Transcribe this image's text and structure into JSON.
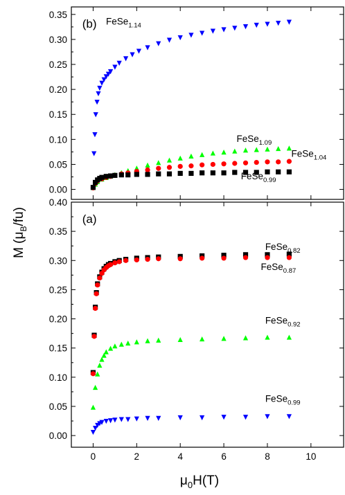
{
  "chart_data": [
    {
      "panel": "(b)",
      "type": "scatter",
      "xlim": [
        -1,
        11.5
      ],
      "ylim": [
        -0.02,
        0.365
      ],
      "yticks": [
        "0.00",
        "0.05",
        "0.10",
        "0.15",
        "0.20",
        "0.25",
        "0.30",
        "0.35"
      ],
      "grid": false,
      "series": [
        {
          "name": "FeSe",
          "sub": "1.14",
          "color": "#0000ff",
          "marker": "triangle-down",
          "x": [
            0.04,
            0.08,
            0.12,
            0.18,
            0.24,
            0.3,
            0.4,
            0.5,
            0.6,
            0.7,
            0.8,
            1.0,
            1.2,
            1.5,
            1.8,
            2.1,
            2.5,
            3.0,
            3.5,
            4.0,
            4.5,
            5.0,
            5.5,
            6.0,
            6.5,
            7.0,
            7.5,
            8.0,
            8.5,
            9.0
          ],
          "y": [
            0.072,
            0.11,
            0.15,
            0.175,
            0.192,
            0.203,
            0.213,
            0.22,
            0.226,
            0.231,
            0.236,
            0.245,
            0.253,
            0.262,
            0.27,
            0.277,
            0.284,
            0.292,
            0.299,
            0.304,
            0.309,
            0.313,
            0.317,
            0.32,
            0.323,
            0.326,
            0.329,
            0.331,
            0.333,
            0.335
          ]
        },
        {
          "name": "FeSe",
          "sub": "1.09",
          "color": "#00ff00",
          "marker": "triangle-up",
          "x": [
            0.0,
            0.1,
            0.2,
            0.4,
            0.6,
            0.8,
            1.0,
            1.3,
            1.6,
            2.0,
            2.5,
            3.0,
            3.5,
            4.0,
            4.5,
            5.0,
            5.5,
            6.0,
            6.5,
            7.0,
            7.5,
            8.0,
            8.5,
            9.0
          ],
          "y": [
            0.003,
            0.01,
            0.015,
            0.02,
            0.023,
            0.026,
            0.029,
            0.033,
            0.037,
            0.042,
            0.048,
            0.053,
            0.058,
            0.062,
            0.066,
            0.069,
            0.072,
            0.074,
            0.076,
            0.078,
            0.079,
            0.08,
            0.081,
            0.082
          ]
        },
        {
          "name": "FeSe",
          "sub": "1.04",
          "color": "#ff0000",
          "marker": "circle",
          "x": [
            0.0,
            0.1,
            0.2,
            0.4,
            0.6,
            0.8,
            1.0,
            1.3,
            1.6,
            2.0,
            2.5,
            3.0,
            3.5,
            4.0,
            4.5,
            5.0,
            5.5,
            6.0,
            6.5,
            7.0,
            7.5,
            8.0,
            8.5,
            9.0
          ],
          "y": [
            0.003,
            0.012,
            0.017,
            0.021,
            0.024,
            0.026,
            0.028,
            0.031,
            0.033,
            0.036,
            0.039,
            0.042,
            0.044,
            0.046,
            0.047,
            0.049,
            0.05,
            0.051,
            0.052,
            0.053,
            0.054,
            0.055,
            0.055,
            0.056
          ]
        },
        {
          "name": "FeSe",
          "sub": "0.99",
          "color": "#000000",
          "marker": "square",
          "x": [
            0.0,
            0.1,
            0.2,
            0.3,
            0.4,
            0.6,
            0.8,
            1.0,
            1.3,
            1.6,
            2.0,
            2.5,
            3.0,
            3.5,
            4.0,
            4.5,
            5.0,
            5.5,
            6.0,
            6.5,
            7.0,
            7.5,
            8.0,
            8.5,
            9.0
          ],
          "y": [
            0.004,
            0.014,
            0.019,
            0.022,
            0.024,
            0.026,
            0.027,
            0.028,
            0.029,
            0.029,
            0.03,
            0.03,
            0.031,
            0.031,
            0.032,
            0.032,
            0.033,
            0.033,
            0.033,
            0.034,
            0.034,
            0.034,
            0.035,
            0.035,
            0.035
          ]
        }
      ]
    },
    {
      "panel": "(a)",
      "type": "scatter",
      "xlim": [
        -1,
        11.5
      ],
      "ylim": [
        -0.02,
        0.4
      ],
      "yticks": [
        "0.00",
        "0.05",
        "0.10",
        "0.15",
        "0.20",
        "0.25",
        "0.30",
        "0.35",
        "0.40"
      ],
      "xticks": [
        "0",
        "2",
        "4",
        "6",
        "8",
        "10"
      ],
      "xlabel": "μ₀H(T)",
      "ylabel": "M (μB/fu)",
      "grid": false,
      "series": [
        {
          "name": "FeSe",
          "sub": "0.82",
          "color": "#000000",
          "marker": "square",
          "x": [
            0.0,
            0.05,
            0.1,
            0.15,
            0.2,
            0.3,
            0.4,
            0.5,
            0.6,
            0.7,
            0.8,
            1.0,
            1.2,
            1.5,
            2.0,
            2.5,
            3.0,
            4.0,
            5.0,
            6.0,
            7.0,
            8.0,
            9.0
          ],
          "y": [
            0.108,
            0.172,
            0.22,
            0.245,
            0.26,
            0.272,
            0.28,
            0.286,
            0.29,
            0.293,
            0.295,
            0.298,
            0.3,
            0.302,
            0.304,
            0.305,
            0.306,
            0.307,
            0.308,
            0.309,
            0.31,
            0.31,
            0.311
          ]
        },
        {
          "name": "FeSe",
          "sub": "0.87",
          "color": "#ff0000",
          "marker": "circle",
          "x": [
            0.0,
            0.05,
            0.1,
            0.15,
            0.2,
            0.3,
            0.4,
            0.5,
            0.6,
            0.7,
            0.8,
            1.0,
            1.2,
            1.5,
            2.0,
            2.5,
            3.0,
            4.0,
            5.0,
            6.0,
            7.0,
            8.0,
            9.0
          ],
          "y": [
            0.106,
            0.17,
            0.218,
            0.243,
            0.258,
            0.27,
            0.278,
            0.284,
            0.288,
            0.291,
            0.293,
            0.296,
            0.298,
            0.3,
            0.301,
            0.302,
            0.303,
            0.303,
            0.304,
            0.304,
            0.305,
            0.305,
            0.305
          ]
        },
        {
          "name": "FeSe",
          "sub": "0.92",
          "color": "#00ff00",
          "marker": "triangle-up",
          "x": [
            0.0,
            0.1,
            0.2,
            0.3,
            0.4,
            0.5,
            0.6,
            0.8,
            1.0,
            1.3,
            1.6,
            2.0,
            2.5,
            3.0,
            4.0,
            5.0,
            6.0,
            7.0,
            8.0,
            9.0
          ],
          "y": [
            0.048,
            0.082,
            0.105,
            0.12,
            0.13,
            0.137,
            0.143,
            0.149,
            0.153,
            0.156,
            0.158,
            0.16,
            0.162,
            0.163,
            0.164,
            0.165,
            0.166,
            0.167,
            0.168,
            0.168
          ]
        },
        {
          "name": "FeSe",
          "sub": "0.99",
          "color": "#0000ff",
          "marker": "triangle-down",
          "x": [
            0.0,
            0.1,
            0.2,
            0.3,
            0.4,
            0.6,
            0.8,
            1.0,
            1.3,
            1.6,
            2.0,
            2.5,
            3.0,
            4.0,
            5.0,
            6.0,
            7.0,
            8.0,
            9.0
          ],
          "y": [
            0.006,
            0.013,
            0.018,
            0.021,
            0.023,
            0.025,
            0.026,
            0.027,
            0.028,
            0.028,
            0.029,
            0.03,
            0.03,
            0.031,
            0.031,
            0.032,
            0.032,
            0.033,
            0.033
          ]
        }
      ]
    }
  ]
}
